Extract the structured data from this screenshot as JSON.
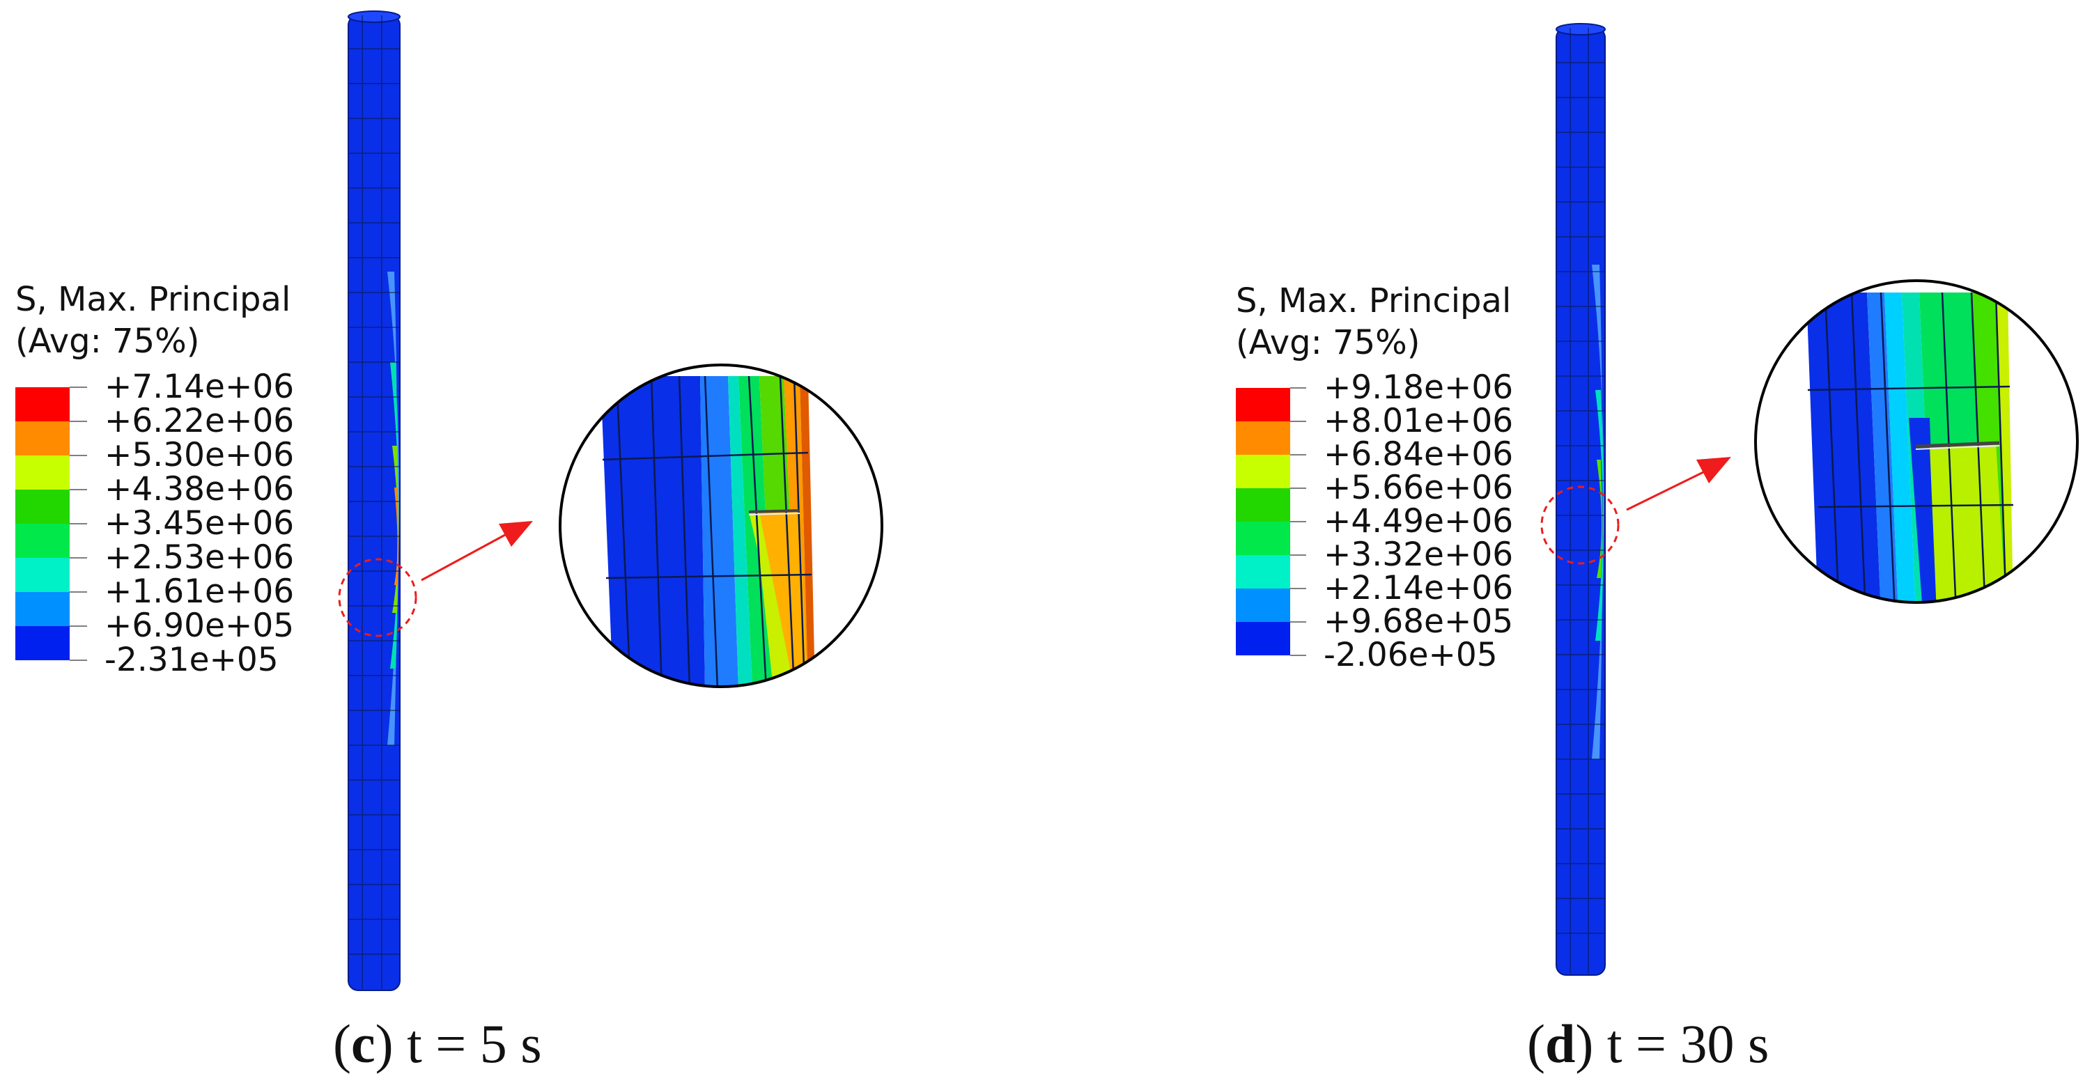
{
  "panels": [
    {
      "id": "c",
      "legend": {
        "title": "S, Max. Principal",
        "subtitle": "(Avg: 75%)",
        "values": [
          "+7.14e+06",
          "+6.22e+06",
          "+5.30e+06",
          "+4.38e+06",
          "+3.45e+06",
          "+2.53e+06",
          "+1.61e+06",
          "+6.90e+05",
          "-2.31e+05"
        ]
      },
      "caption": {
        "letter": "c",
        "text": "t = 5 s"
      }
    },
    {
      "id": "d",
      "legend": {
        "title": "S, Max. Principal",
        "subtitle": "(Avg: 75%)",
        "values": [
          "+9.18e+06",
          "+8.01e+06",
          "+6.84e+06",
          "+5.66e+06",
          "+4.49e+06",
          "+3.32e+06",
          "+2.14e+06",
          "+9.68e+05",
          "-2.06e+05"
        ]
      },
      "caption": {
        "letter": "d",
        "text": "t = 30 s"
      }
    }
  ],
  "colors": {
    "contour_bands": [
      "#ff0000",
      "#ff8c00",
      "#c8ff00",
      "#22d600",
      "#00e84a",
      "#00f0c8",
      "#0090ff",
      "#0020f0"
    ],
    "callout": "#ee1c1c",
    "mesh_lines": "#0a1a50"
  }
}
